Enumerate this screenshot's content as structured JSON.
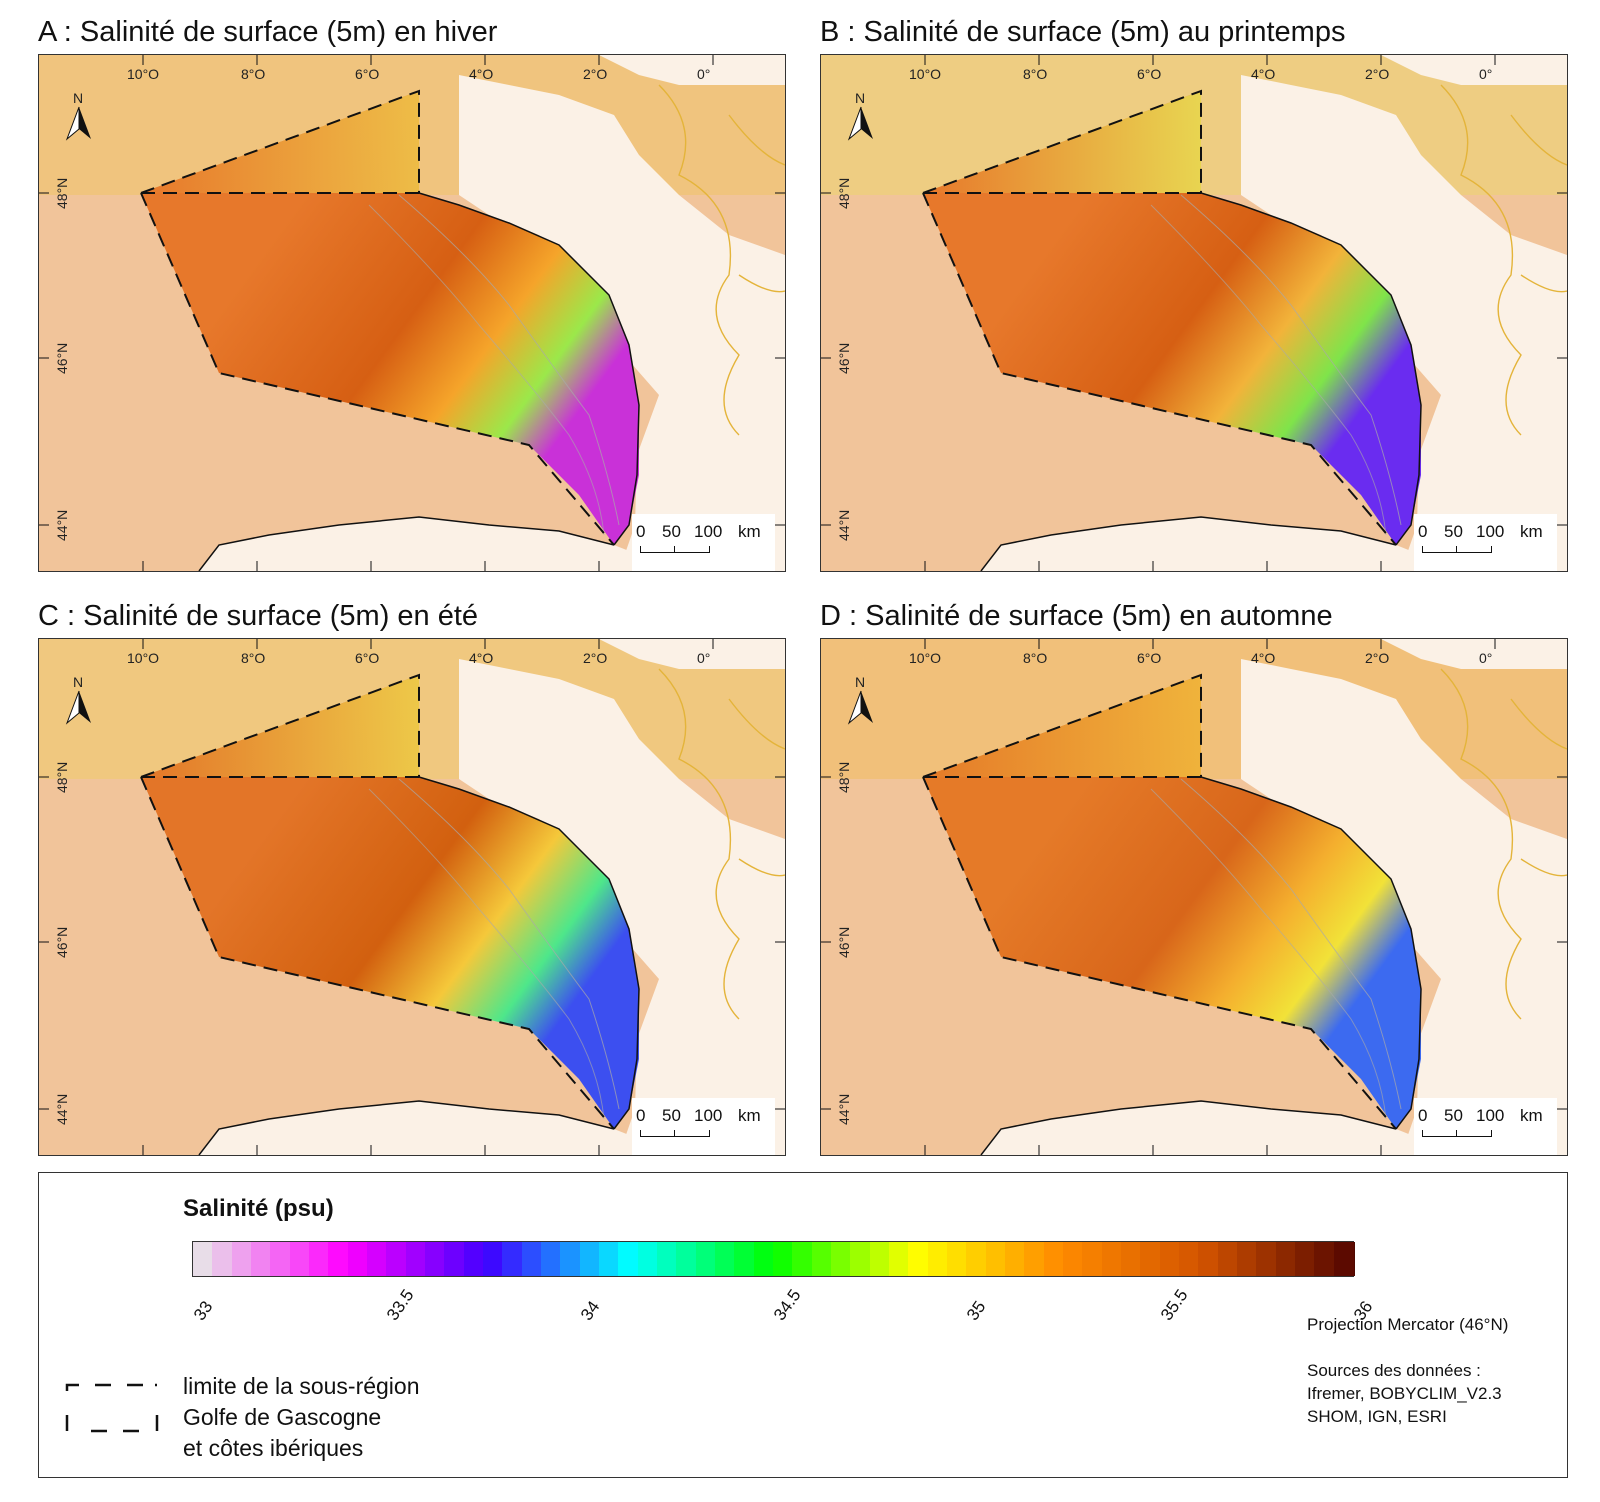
{
  "panels": [
    {
      "id": "A",
      "title": "A : Salinité de surface (5m) en hiver",
      "colors": {
        "open": "#e7782b",
        "deep": "#d65f13",
        "mid": "#f5a42a",
        "coast": "#9be84a",
        "plume": "#c931d8",
        "shelf": "#efc54b"
      }
    },
    {
      "id": "B",
      "title": "B : Salinité de surface (5m) au printemps",
      "colors": {
        "open": "#e7782b",
        "deep": "#d65f13",
        "mid": "#f2b33a",
        "coast": "#7fe44a",
        "plume": "#6a2cf0",
        "shelf": "#e9e056"
      }
    },
    {
      "id": "C",
      "title": "C : Salinité de surface (5m) en été",
      "colors": {
        "open": "#e37528",
        "deep": "#d2600f",
        "mid": "#f5c83a",
        "coast": "#4ee78a",
        "plume": "#3c4ff0",
        "shelf": "#efd24d"
      }
    },
    {
      "id": "D",
      "title": "D : Salinité de surface (5m) en automne",
      "colors": {
        "open": "#e57a28",
        "deep": "#d8661a",
        "mid": "#f4ae2e",
        "coast": "#f2e238",
        "plume": "#3c6af0",
        "shelf": "#f1ba3e"
      }
    }
  ],
  "map_labels": {
    "north": "N",
    "lon_ticks": [
      "10°O",
      "8°O",
      "6°O",
      "4°O",
      "2°O",
      "0°"
    ],
    "lat_ticks": [
      "48°N",
      "46°N",
      "44°N"
    ],
    "scale": [
      "0",
      "50",
      "100",
      "km"
    ]
  },
  "legend": {
    "title": "Salinité (psu)",
    "ticks": [
      "33",
      "33.5",
      "34",
      "34.5",
      "35",
      "35.5",
      "36"
    ],
    "range": [
      33,
      36
    ],
    "line_text": [
      "limite de la sous-région",
      "Golfe de Gascogne",
      "et côtes ibériques"
    ],
    "projection": "Projection Mercator (46°N)",
    "sources": [
      "Sources des données :",
      "Ifremer, BOBYCLIM_V2.3",
      "SHOM, IGN, ESRI"
    ]
  }
}
